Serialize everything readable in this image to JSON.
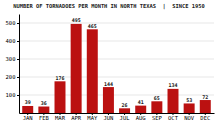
{
  "chart_data": {
    "type": "bar",
    "title": "NUMBER OF TORNADOES PER MONTH IN NORTH TEXAS  |  SINCE 1950",
    "categories": [
      "JAN",
      "FEB",
      "MAR",
      "APR",
      "MAY",
      "JUN",
      "JUL",
      "AUG",
      "SEP",
      "OCT",
      "NOV",
      "DEC"
    ],
    "values": [
      39,
      36,
      176,
      495,
      465,
      144,
      26,
      41,
      65,
      134,
      53,
      72
    ],
    "color": "#bb1111",
    "ylim": [
      0,
      550
    ],
    "yticks": [
      100,
      200,
      300,
      400,
      500
    ],
    "grid": true,
    "data_labels": true
  }
}
